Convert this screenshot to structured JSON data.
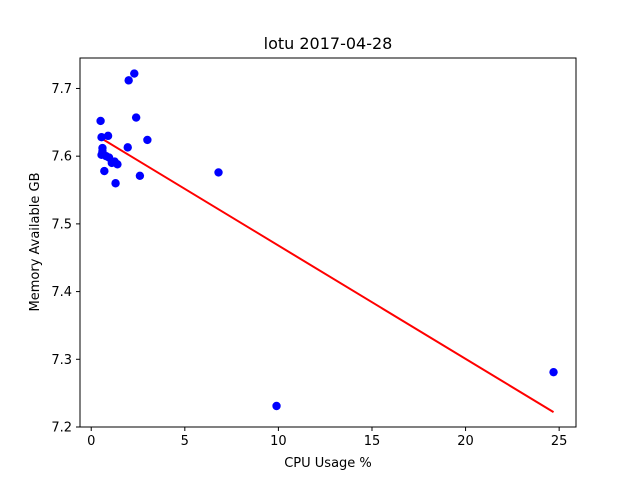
{
  "chart_data": {
    "type": "scatter",
    "title": "lotu 2017-04-28",
    "xlabel": "CPU Usage %",
    "ylabel": "Memory Available GB",
    "xlim": [
      -0.6,
      25.9
    ],
    "ylim": [
      7.2,
      7.745
    ],
    "xticks": [
      0,
      5,
      10,
      15,
      20,
      25
    ],
    "xtick_labels": [
      "0",
      "5",
      "10",
      "15",
      "20",
      "25"
    ],
    "yticks": [
      7.2,
      7.3,
      7.4,
      7.5,
      7.6,
      7.7
    ],
    "ytick_labels": [
      "7.2",
      "7.3",
      "7.4",
      "7.5",
      "7.6",
      "7.7"
    ],
    "grid": false,
    "series": [
      {
        "kind": "points",
        "color": "#0000ff",
        "x": [
          0.5,
          0.55,
          0.6,
          0.6,
          0.55,
          0.7,
          0.9,
          0.95,
          0.8,
          1.1,
          1.25,
          1.4,
          1.3,
          1.95,
          2.0,
          2.3,
          2.4,
          2.6,
          3.0,
          6.8,
          9.9,
          24.7
        ],
        "y": [
          7.652,
          7.628,
          7.612,
          7.607,
          7.602,
          7.578,
          7.63,
          7.598,
          7.6,
          7.59,
          7.592,
          7.588,
          7.56,
          7.613,
          7.712,
          7.722,
          7.657,
          7.571,
          7.624,
          7.576,
          7.231,
          7.281
        ]
      },
      {
        "kind": "line",
        "color": "#ff0000",
        "x": [
          0.5,
          24.7
        ],
        "y": [
          7.627,
          7.222
        ]
      }
    ]
  }
}
